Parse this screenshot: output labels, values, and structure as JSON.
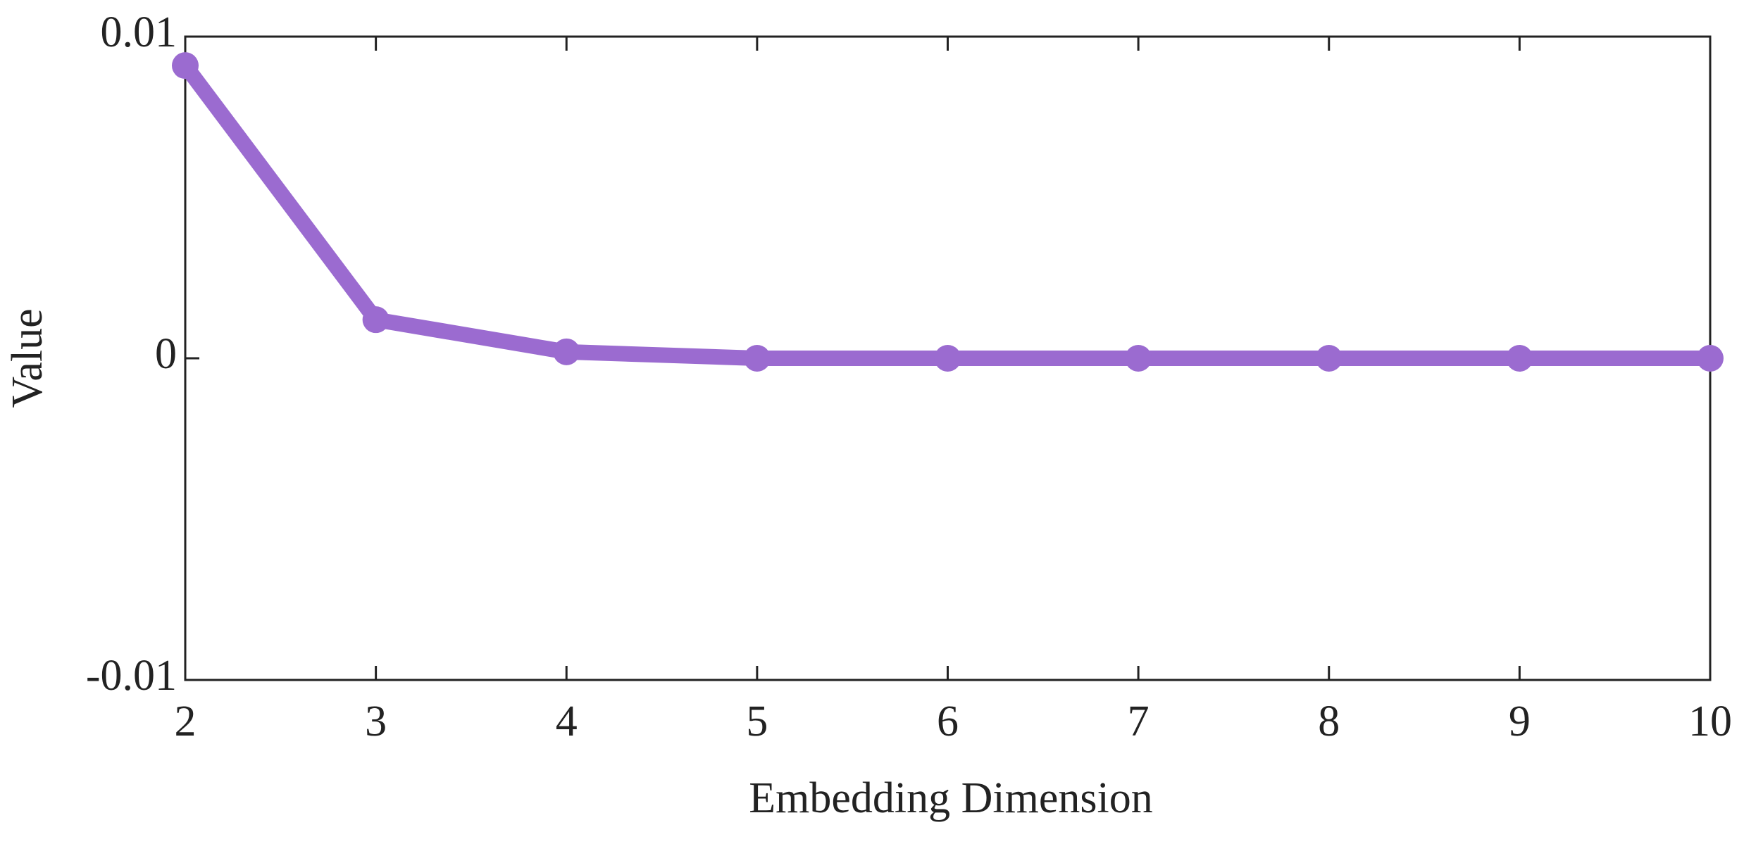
{
  "chart_data": {
    "type": "line",
    "x_label": "Embedding Dimension",
    "y_label": "Value",
    "x": [
      2,
      3,
      4,
      5,
      6,
      7,
      8,
      9,
      10
    ],
    "series": [
      {
        "color": "#9b6bd0",
        "values": [
          0.0091,
          0.0012,
          0.0002,
          0,
          0,
          0,
          0,
          0,
          0
        ]
      }
    ],
    "xlim": [
      2,
      10
    ],
    "xticks": [
      2,
      3,
      4,
      5,
      6,
      7,
      8,
      9,
      10
    ],
    "ylim": [
      -0.01,
      0.01
    ],
    "yticks": [
      -0.01,
      0,
      0.01
    ]
  }
}
